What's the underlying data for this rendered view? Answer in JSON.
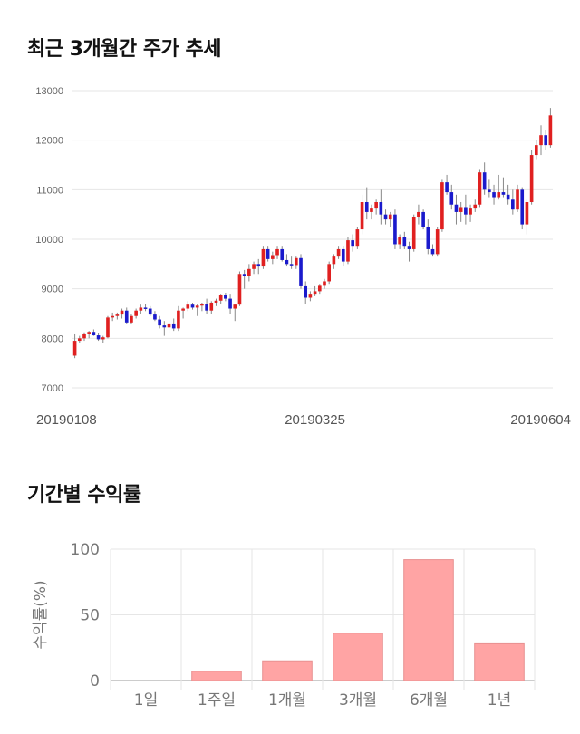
{
  "titles": {
    "price_trend": "최근 3개월간 주가 추세",
    "period_return": "기간별 수익률"
  },
  "colors": {
    "up": "#e02020",
    "down": "#1a1acc",
    "wick": "#888888",
    "bar_fill": "#ffa4a4",
    "bar_stroke": "#e89090",
    "grid": "#e6e6e6"
  },
  "chart_data": [
    {
      "type": "candlestick",
      "title": "최근 3개월간 주가 추세",
      "ylim": [
        7000,
        13000
      ],
      "yticks": [
        7000,
        8000,
        9000,
        10000,
        11000,
        12000,
        13000
      ],
      "xtick_labels": [
        "20190108",
        "20190325",
        "20190604"
      ],
      "xtick_indices": [
        0,
        51,
        101
      ],
      "grid": true,
      "ohlc": [
        [
          7650,
          8080,
          7600,
          7950
        ],
        [
          7950,
          8050,
          7900,
          8000
        ],
        [
          8000,
          8120,
          7950,
          8080
        ],
        [
          8080,
          8150,
          8000,
          8130
        ],
        [
          8130,
          8180,
          8050,
          8060
        ],
        [
          8060,
          8100,
          7950,
          7980
        ],
        [
          7980,
          8050,
          7900,
          8020
        ],
        [
          8020,
          8450,
          8000,
          8420
        ],
        [
          8420,
          8520,
          8350,
          8450
        ],
        [
          8450,
          8520,
          8380,
          8480
        ],
        [
          8480,
          8600,
          8400,
          8560
        ],
        [
          8560,
          8620,
          8300,
          8320
        ],
        [
          8320,
          8500,
          8280,
          8450
        ],
        [
          8450,
          8600,
          8400,
          8560
        ],
        [
          8560,
          8680,
          8500,
          8620
        ],
        [
          8620,
          8700,
          8550,
          8600
        ],
        [
          8600,
          8650,
          8450,
          8480
        ],
        [
          8480,
          8550,
          8350,
          8380
        ],
        [
          8380,
          8450,
          8200,
          8260
        ],
        [
          8260,
          8350,
          8050,
          8220
        ],
        [
          8220,
          8350,
          8100,
          8300
        ],
        [
          8300,
          8400,
          8150,
          8200
        ],
        [
          8200,
          8650,
          8150,
          8560
        ],
        [
          8560,
          8620,
          8400,
          8600
        ],
        [
          8600,
          8750,
          8550,
          8680
        ],
        [
          8680,
          8720,
          8580,
          8620
        ],
        [
          8620,
          8700,
          8450,
          8660
        ],
        [
          8660,
          8720,
          8550,
          8700
        ],
        [
          8700,
          8800,
          8500,
          8560
        ],
        [
          8560,
          8750,
          8500,
          8720
        ],
        [
          8720,
          8800,
          8650,
          8760
        ],
        [
          8760,
          8900,
          8700,
          8880
        ],
        [
          8880,
          8920,
          8750,
          8800
        ],
        [
          8800,
          8900,
          8500,
          8600
        ],
        [
          8600,
          8700,
          8350,
          8680
        ],
        [
          8680,
          9350,
          8650,
          9300
        ],
        [
          9300,
          9380,
          9000,
          9250
        ],
        [
          9250,
          9500,
          9150,
          9400
        ],
        [
          9400,
          9550,
          9300,
          9500
        ],
        [
          9500,
          9600,
          9300,
          9450
        ],
        [
          9450,
          9850,
          9400,
          9800
        ],
        [
          9800,
          9850,
          9550,
          9600
        ],
        [
          9600,
          9750,
          9500,
          9680
        ],
        [
          9680,
          9850,
          9600,
          9800
        ],
        [
          9800,
          9850,
          9550,
          9580
        ],
        [
          9580,
          9700,
          9450,
          9500
        ],
        [
          9500,
          9650,
          9400,
          9480
        ],
        [
          9480,
          9650,
          9400,
          9620
        ],
        [
          9620,
          9700,
          9000,
          9050
        ],
        [
          9050,
          9150,
          8700,
          8820
        ],
        [
          8820,
          8950,
          8750,
          8900
        ],
        [
          8900,
          9050,
          8850,
          8950
        ],
        [
          8950,
          9100,
          8900,
          9060
        ],
        [
          9060,
          9200,
          9000,
          9150
        ],
        [
          9150,
          9550,
          9100,
          9500
        ],
        [
          9500,
          9700,
          9400,
          9650
        ],
        [
          9650,
          9850,
          9600,
          9800
        ],
        [
          9800,
          9850,
          9450,
          9550
        ],
        [
          9550,
          10050,
          9500,
          9980
        ],
        [
          9980,
          10100,
          9750,
          9850
        ],
        [
          9850,
          10250,
          9800,
          10200
        ],
        [
          10200,
          10900,
          10100,
          10750
        ],
        [
          10750,
          11050,
          10400,
          10550
        ],
        [
          10550,
          10700,
          10400,
          10620
        ],
        [
          10620,
          10800,
          10500,
          10750
        ],
        [
          10750,
          11000,
          10300,
          10500
        ],
        [
          10500,
          10600,
          10300,
          10400
        ],
        [
          10400,
          10550,
          10250,
          10500
        ],
        [
          10500,
          10600,
          9800,
          9900
        ],
        [
          9900,
          10100,
          9800,
          10050
        ],
        [
          10050,
          10150,
          9800,
          9850
        ],
        [
          9850,
          9950,
          9550,
          9800
        ],
        [
          9800,
          10500,
          9750,
          10450
        ],
        [
          10450,
          10700,
          10300,
          10550
        ],
        [
          10550,
          10600,
          10200,
          10250
        ],
        [
          10250,
          10400,
          9700,
          9800
        ],
        [
          9800,
          9900,
          9650,
          9700
        ],
        [
          9700,
          10250,
          9650,
          10200
        ],
        [
          10200,
          11200,
          10150,
          11150
        ],
        [
          11150,
          11300,
          10900,
          10950
        ],
        [
          10950,
          11100,
          10600,
          10700
        ],
        [
          10700,
          10900,
          10300,
          10550
        ],
        [
          10550,
          10750,
          10350,
          10650
        ],
        [
          10650,
          10900,
          10300,
          10500
        ],
        [
          10500,
          10700,
          10350,
          10620
        ],
        [
          10620,
          10800,
          10550,
          10700
        ],
        [
          10700,
          11400,
          10650,
          11350
        ],
        [
          11350,
          11550,
          10900,
          11000
        ],
        [
          11000,
          11200,
          10850,
          10950
        ],
        [
          10950,
          11100,
          10700,
          10850
        ],
        [
          10850,
          11300,
          10800,
          10950
        ],
        [
          10950,
          11250,
          10850,
          10900
        ],
        [
          10900,
          11100,
          10700,
          10800
        ],
        [
          10800,
          11000,
          10500,
          10600
        ],
        [
          10600,
          11100,
          10550,
          11000
        ],
        [
          11000,
          11050,
          10200,
          10300
        ],
        [
          10300,
          10800,
          10100,
          10750
        ],
        [
          10750,
          11800,
          10700,
          11700
        ],
        [
          11700,
          12000,
          11600,
          11900
        ],
        [
          11900,
          12300,
          11700,
          12100
        ],
        [
          12100,
          12200,
          11800,
          11900
        ],
        [
          11900,
          12650,
          11850,
          12500
        ]
      ]
    },
    {
      "type": "bar",
      "title": "기간별 수익률",
      "ylabel": "수익률(%)",
      "categories": [
        "1일",
        "1주일",
        "1개월",
        "3개월",
        "6개월",
        "1년"
      ],
      "values": [
        0,
        7,
        15,
        36,
        92,
        28
      ],
      "ylim": [
        0,
        100
      ],
      "yticks": [
        0,
        50,
        100
      ],
      "grid": true
    }
  ]
}
